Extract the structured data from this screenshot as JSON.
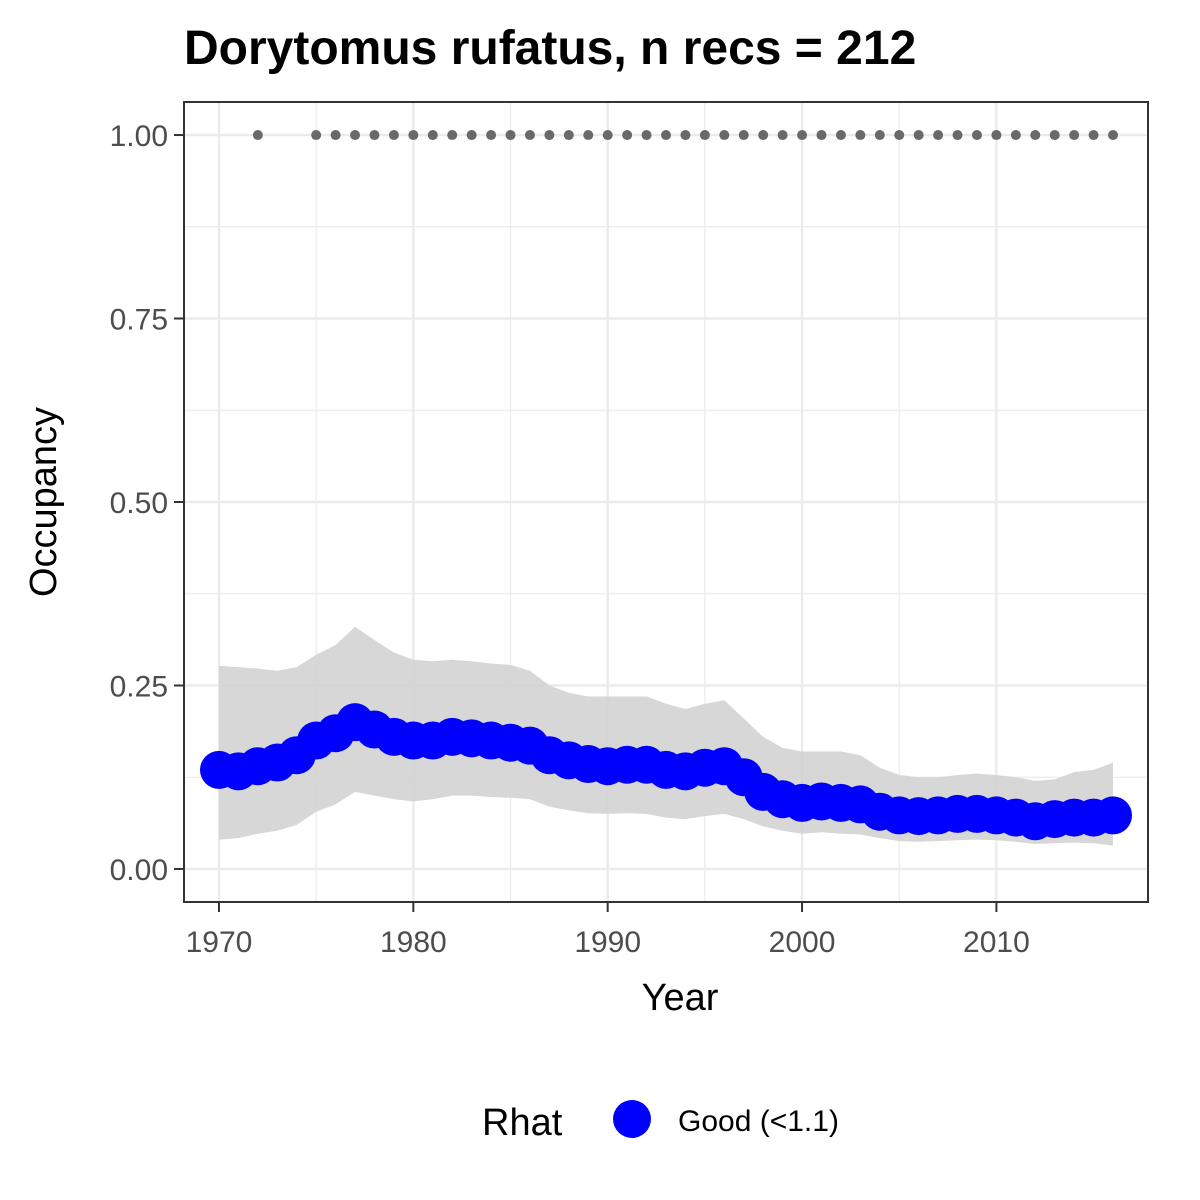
{
  "chart_data": {
    "type": "line",
    "title": "Dorytomus rufatus, n recs = 212",
    "xlabel": "Year",
    "ylabel": "Occupancy",
    "xlim": [
      1968.2,
      2017.8
    ],
    "ylim": [
      -0.045,
      1.045
    ],
    "x_ticks": [
      1970,
      1980,
      1990,
      2000,
      2010
    ],
    "x_tick_labels": [
      "1970",
      "1980",
      "1990",
      "2000",
      "2010"
    ],
    "y_ticks": [
      0,
      0.25,
      0.5,
      0.75,
      1
    ],
    "y_tick_labels": [
      "0.00",
      "0.25",
      "0.50",
      "0.75",
      "1.00"
    ],
    "grid": true,
    "legend_position": "bottom",
    "x": [
      1970,
      1971,
      1972,
      1973,
      1974,
      1975,
      1976,
      1977,
      1978,
      1979,
      1980,
      1981,
      1982,
      1983,
      1984,
      1985,
      1986,
      1987,
      1988,
      1989,
      1990,
      1991,
      1992,
      1993,
      1994,
      1995,
      1996,
      1997,
      1998,
      1999,
      2000,
      2001,
      2002,
      2003,
      2004,
      2005,
      2006,
      2007,
      2008,
      2009,
      2010,
      2011,
      2012,
      2013,
      2014,
      2015,
      2016
    ],
    "occupancy": [
      0.135,
      0.133,
      0.14,
      0.145,
      0.155,
      0.175,
      0.185,
      0.2,
      0.19,
      0.18,
      0.175,
      0.175,
      0.18,
      0.178,
      0.175,
      0.172,
      0.168,
      0.155,
      0.148,
      0.143,
      0.14,
      0.142,
      0.142,
      0.135,
      0.133,
      0.138,
      0.14,
      0.125,
      0.105,
      0.095,
      0.09,
      0.092,
      0.09,
      0.088,
      0.078,
      0.073,
      0.072,
      0.073,
      0.075,
      0.075,
      0.073,
      0.07,
      0.065,
      0.068,
      0.07,
      0.07,
      0.073
    ],
    "lower_ci": [
      0.04,
      0.042,
      0.048,
      0.052,
      0.06,
      0.078,
      0.088,
      0.105,
      0.1,
      0.095,
      0.092,
      0.095,
      0.1,
      0.1,
      0.098,
      0.097,
      0.095,
      0.085,
      0.08,
      0.076,
      0.075,
      0.076,
      0.075,
      0.07,
      0.068,
      0.072,
      0.075,
      0.068,
      0.058,
      0.052,
      0.048,
      0.05,
      0.048,
      0.047,
      0.042,
      0.038,
      0.037,
      0.038,
      0.039,
      0.04,
      0.039,
      0.037,
      0.034,
      0.035,
      0.036,
      0.035,
      0.032
    ],
    "upper_ci": [
      0.277,
      0.275,
      0.273,
      0.27,
      0.275,
      0.292,
      0.305,
      0.33,
      0.312,
      0.295,
      0.285,
      0.283,
      0.285,
      0.283,
      0.28,
      0.278,
      0.27,
      0.25,
      0.24,
      0.235,
      0.235,
      0.235,
      0.235,
      0.225,
      0.218,
      0.225,
      0.23,
      0.205,
      0.18,
      0.165,
      0.16,
      0.16,
      0.16,
      0.155,
      0.138,
      0.128,
      0.125,
      0.125,
      0.128,
      0.13,
      0.128,
      0.125,
      0.12,
      0.122,
      0.132,
      0.135,
      0.145
    ],
    "detected_years": [
      1972,
      1975,
      1976,
      1977,
      1978,
      1979,
      1980,
      1981,
      1982,
      1983,
      1984,
      1985,
      1986,
      1987,
      1988,
      1989,
      1990,
      1991,
      1992,
      1993,
      1994,
      1995,
      1996,
      1997,
      1998,
      1999,
      2000,
      2001,
      2002,
      2003,
      2004,
      2005,
      2006,
      2007,
      2008,
      2009,
      2010,
      2011,
      2012,
      2013,
      2014,
      2015,
      2016
    ],
    "detected_value": 1,
    "legend": {
      "title": "Rhat",
      "entries": [
        {
          "label": "Good (<1.1)",
          "color": "#0000ff"
        }
      ]
    },
    "colors": {
      "occupancy": "#0000ff",
      "ci_band": "#d3d3d3",
      "detections": "#696969",
      "grid": "#ebebeb",
      "panel_border": "#333333"
    }
  }
}
